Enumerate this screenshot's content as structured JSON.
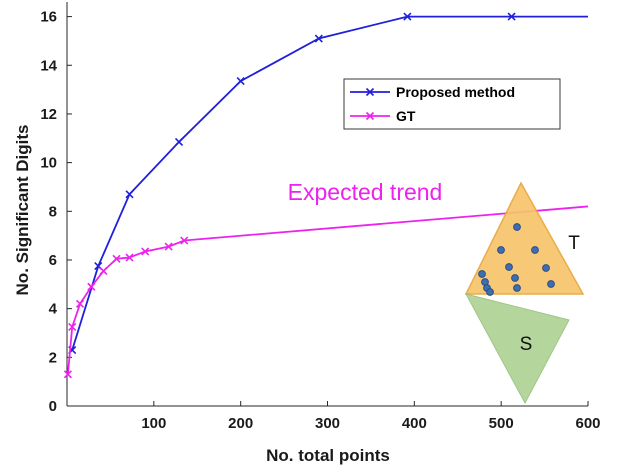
{
  "chart_data": {
    "type": "line",
    "xlabel": "No. total points",
    "ylabel": "No. Significant Digits",
    "xlim": [
      0,
      600
    ],
    "ylim": [
      0,
      16.6
    ],
    "xticks": [
      100,
      200,
      300,
      400,
      500,
      600
    ],
    "yticks": [
      0,
      2,
      4,
      6,
      8,
      10,
      12,
      14,
      16
    ],
    "grid": false,
    "legend": "upper-right",
    "series": [
      {
        "name": "Proposed method",
        "color": "#1f1fdc",
        "marker": "x",
        "x": [
          6,
          36,
          72,
          129,
          200,
          290,
          392,
          512,
          600
        ],
        "y": [
          2.3,
          5.75,
          8.7,
          10.85,
          13.35,
          15.1,
          16.0,
          16.0,
          16.0
        ],
        "marker_indices": [
          0,
          1,
          2,
          3,
          4,
          5,
          6,
          7
        ]
      },
      {
        "name": "GT",
        "color": "#ee22ee",
        "marker": "x",
        "x": [
          1,
          6,
          15,
          28,
          42,
          57,
          72,
          90,
          117,
          135,
          600
        ],
        "y": [
          1.3,
          3.25,
          4.2,
          4.9,
          5.55,
          6.05,
          6.1,
          6.35,
          6.55,
          6.8,
          8.2
        ],
        "marker_indices": [
          0,
          1,
          2,
          3,
          4,
          5,
          6,
          7,
          8,
          9
        ]
      }
    ],
    "annotations": [
      {
        "text": "Expected trend",
        "color": "#ee22ee"
      },
      {
        "text": "T"
      },
      {
        "text": "S"
      }
    ]
  }
}
